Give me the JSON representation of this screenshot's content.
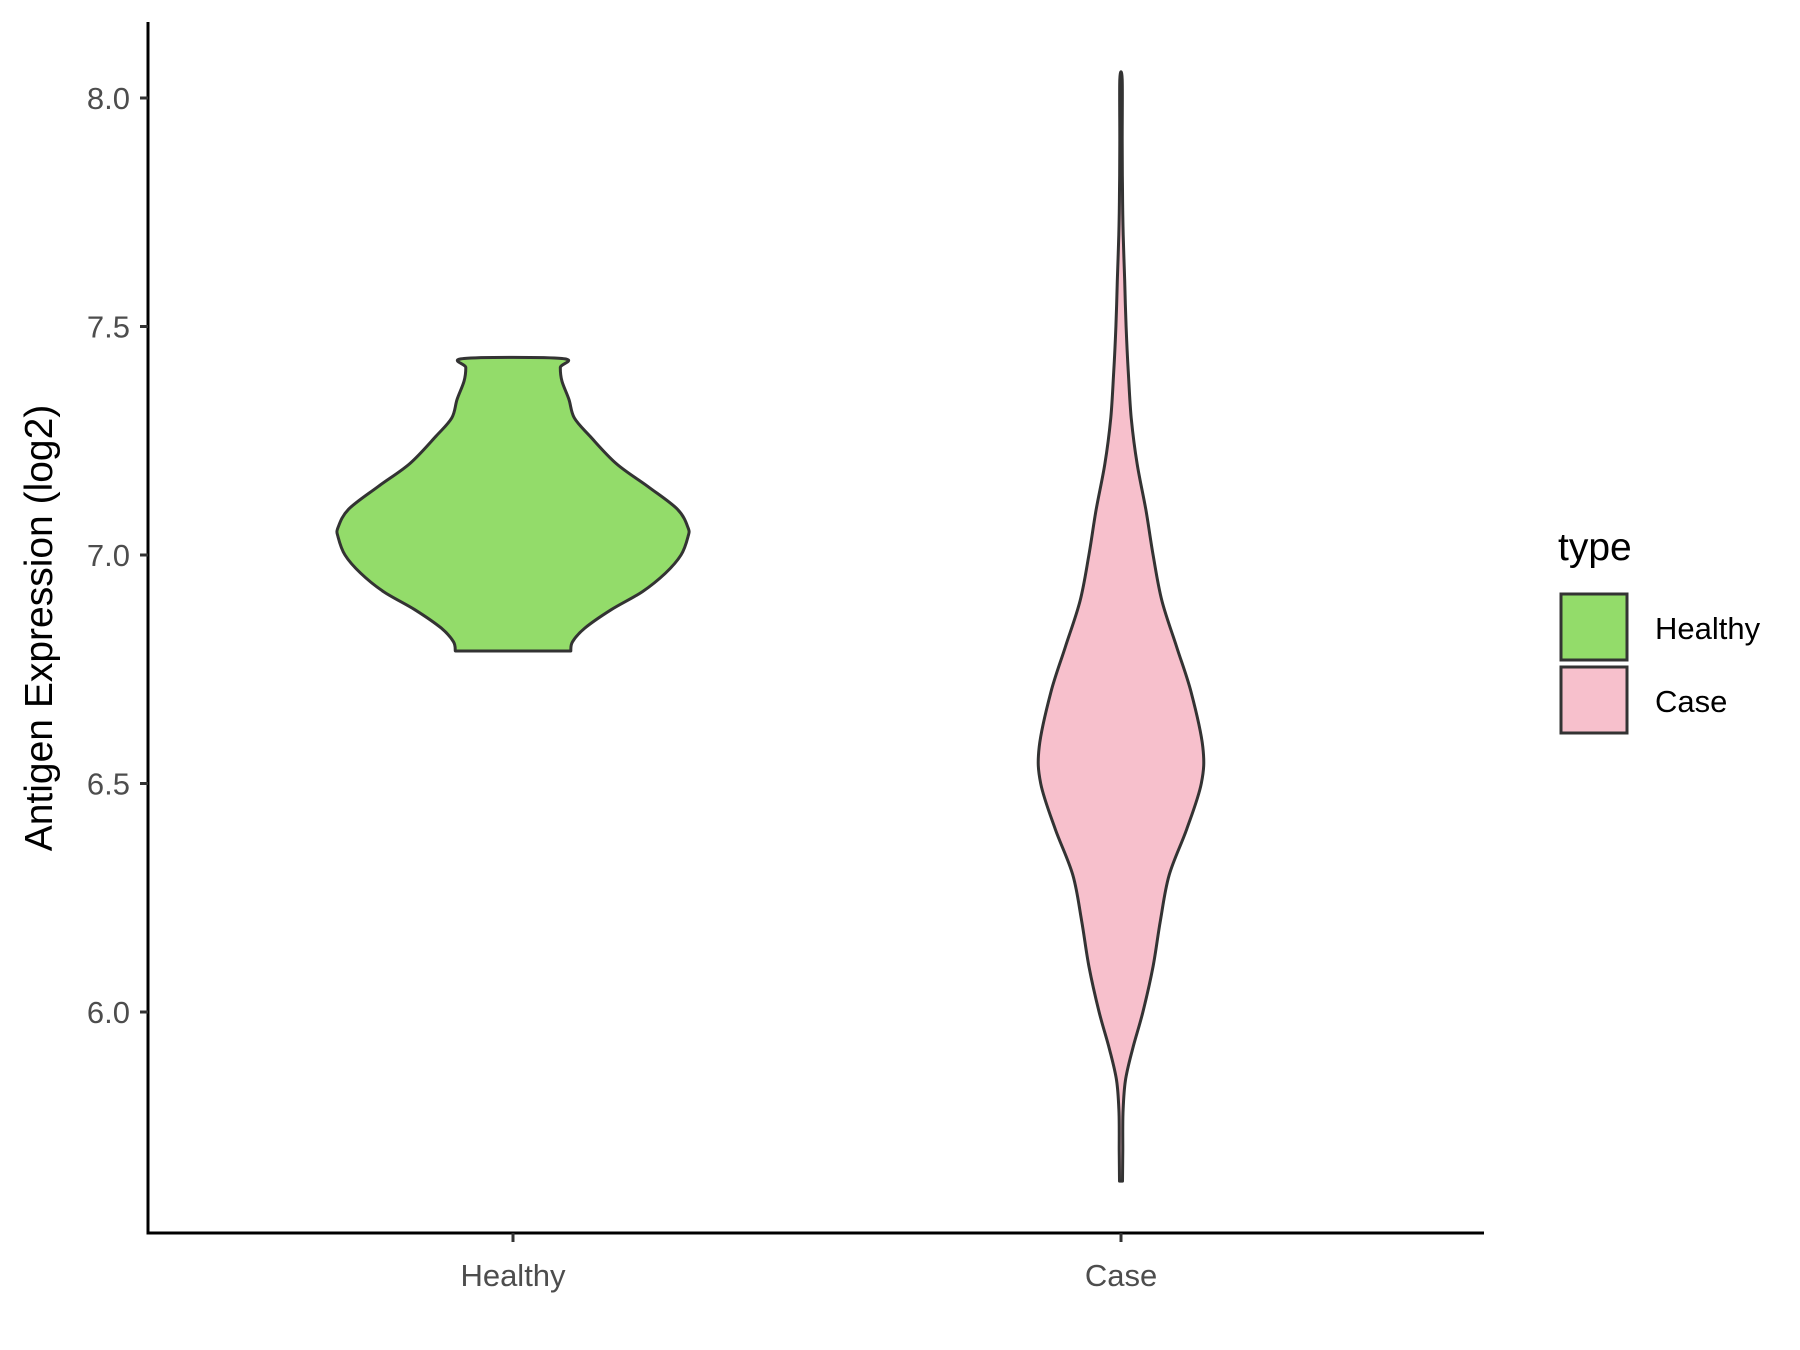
{
  "chart_data": {
    "type": "violin",
    "title": "",
    "xlabel": "",
    "ylabel": "Antigen Expression (log2)",
    "ylim": [
      5.52,
      8.16
    ],
    "yticks": [
      6.0,
      6.5,
      7.0,
      7.5,
      8.0
    ],
    "ytick_labels": [
      "6.0",
      "6.5",
      "7.0",
      "7.5",
      "8.0"
    ],
    "categories": [
      "Healthy",
      "Case"
    ],
    "legend": {
      "title": "type",
      "position": "right",
      "entries": [
        {
          "label": "Healthy",
          "color": "#93dc6a"
        },
        {
          "label": "Case",
          "color": "#f7c0cc"
        }
      ]
    },
    "grid": false,
    "series": [
      {
        "name": "Healthy",
        "color": "#93dc6a",
        "min": 6.79,
        "max": 7.43,
        "density": [
          [
            6.79,
            0.33
          ],
          [
            6.81,
            0.34
          ],
          [
            6.84,
            0.41
          ],
          [
            6.88,
            0.56
          ],
          [
            6.92,
            0.74
          ],
          [
            6.96,
            0.87
          ],
          [
            7.0,
            0.96
          ],
          [
            7.04,
            1.0
          ],
          [
            7.06,
            1.0
          ],
          [
            7.1,
            0.94
          ],
          [
            7.15,
            0.77
          ],
          [
            7.2,
            0.59
          ],
          [
            7.26,
            0.44
          ],
          [
            7.3,
            0.35
          ],
          [
            7.34,
            0.32
          ],
          [
            7.38,
            0.28
          ],
          [
            7.41,
            0.27
          ],
          [
            7.43,
            0.28
          ]
        ]
      },
      {
        "name": "Case",
        "color": "#f7c0cc",
        "min": 5.63,
        "max": 8.04,
        "density": [
          [
            5.63,
            0.01
          ],
          [
            5.7,
            0.012
          ],
          [
            5.78,
            0.014
          ],
          [
            5.85,
            0.03
          ],
          [
            5.92,
            0.08
          ],
          [
            6.0,
            0.15
          ],
          [
            6.1,
            0.22
          ],
          [
            6.2,
            0.27
          ],
          [
            6.3,
            0.33
          ],
          [
            6.4,
            0.45
          ],
          [
            6.5,
            0.55
          ],
          [
            6.58,
            0.56
          ],
          [
            6.7,
            0.48
          ],
          [
            6.8,
            0.38
          ],
          [
            6.9,
            0.28
          ],
          [
            7.0,
            0.22
          ],
          [
            7.1,
            0.17
          ],
          [
            7.2,
            0.11
          ],
          [
            7.3,
            0.07
          ],
          [
            7.4,
            0.05
          ],
          [
            7.5,
            0.035
          ],
          [
            7.6,
            0.025
          ],
          [
            7.7,
            0.015
          ],
          [
            7.8,
            0.01
          ],
          [
            7.9,
            0.008
          ],
          [
            8.04,
            0.008
          ]
        ]
      }
    ]
  }
}
